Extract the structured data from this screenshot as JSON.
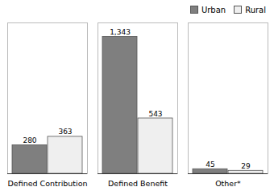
{
  "chart_data": {
    "type": "bar",
    "categories": [
      "Defined Contribution",
      "Defined Benefit",
      "Other*"
    ],
    "series": [
      {
        "name": "Urban",
        "color": "#7f7f7f",
        "values": [
          280,
          1343,
          45
        ],
        "value_labels": [
          "280",
          "1,343",
          "45"
        ]
      },
      {
        "name": "Rural",
        "color": "#efefef",
        "values": [
          363,
          543,
          29
        ]
      }
    ],
    "ylim": [
      0,
      1480
    ],
    "data_labels": true,
    "tick_labels": "x",
    "legend": "upper right",
    "grid": false
  }
}
